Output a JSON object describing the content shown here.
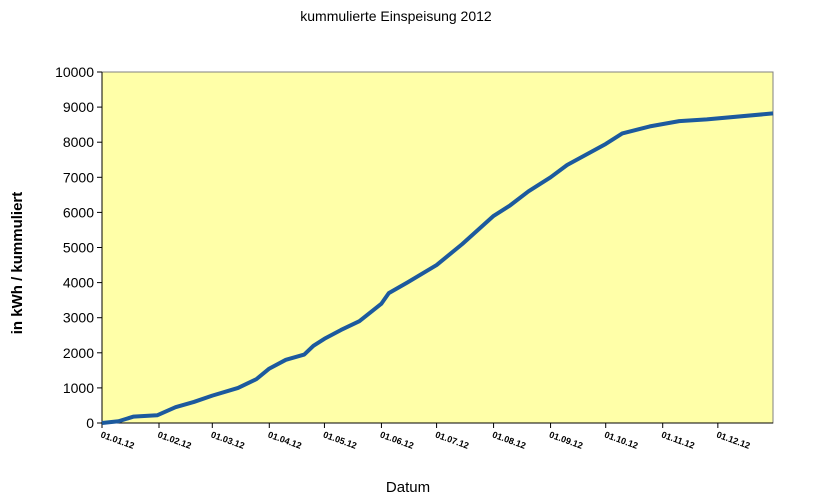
{
  "chart_data": {
    "type": "line",
    "title": "kummulierte Einspeisung 2012",
    "x_label": "Datum",
    "y_label": "in kWh / kummuliert",
    "x": [
      "2012-01-01",
      "2012-01-10",
      "2012-01-18",
      "2012-01-31",
      "2012-02-10",
      "2012-02-20",
      "2012-03-01",
      "2012-03-15",
      "2012-03-25",
      "2012-04-01",
      "2012-04-10",
      "2012-04-20",
      "2012-04-25",
      "2012-05-01",
      "2012-05-10",
      "2012-05-20",
      "2012-06-01",
      "2012-06-05",
      "2012-06-15",
      "2012-07-01",
      "2012-07-15",
      "2012-08-01",
      "2012-08-10",
      "2012-08-20",
      "2012-09-01",
      "2012-09-10",
      "2012-10-01",
      "2012-10-10",
      "2012-10-25",
      "2012-11-10",
      "2012-11-25",
      "2012-12-31"
    ],
    "series": [
      {
        "name": "Einspeisung",
        "color": "#1c5a9e",
        "values": [
          0,
          50,
          180,
          220,
          450,
          600,
          780,
          1000,
          1250,
          1550,
          1800,
          1950,
          2200,
          2400,
          2650,
          2900,
          3400,
          3700,
          4000,
          4500,
          5100,
          5900,
          6200,
          6600,
          7000,
          7350,
          7950,
          8250,
          8450,
          8600,
          8650,
          8820
        ]
      }
    ],
    "xlim": [
      "2012-01-01",
      "2012-12-31"
    ],
    "xticks": [
      {
        "value": "2012-01-01",
        "label": "01.01.12"
      },
      {
        "value": "2012-02-01",
        "label": "01.02.12"
      },
      {
        "value": "2012-03-01",
        "label": "01.03.12"
      },
      {
        "value": "2012-04-01",
        "label": "01.04.12"
      },
      {
        "value": "2012-05-01",
        "label": "01.05.12"
      },
      {
        "value": "2012-06-01",
        "label": "01.06.12"
      },
      {
        "value": "2012-07-01",
        "label": "01.07.12"
      },
      {
        "value": "2012-08-01",
        "label": "01.08.12"
      },
      {
        "value": "2012-09-01",
        "label": "01.09.12"
      },
      {
        "value": "2012-10-01",
        "label": "01.10.12"
      },
      {
        "value": "2012-11-01",
        "label": "01.11.12"
      },
      {
        "value": "2012-12-01",
        "label": "01.12.12"
      }
    ],
    "ylim": [
      0,
      10000
    ],
    "yticks": [
      0,
      1000,
      2000,
      3000,
      4000,
      5000,
      6000,
      7000,
      8000,
      9000,
      10000
    ],
    "plot_background": "#ffffa8",
    "grid": false
  }
}
